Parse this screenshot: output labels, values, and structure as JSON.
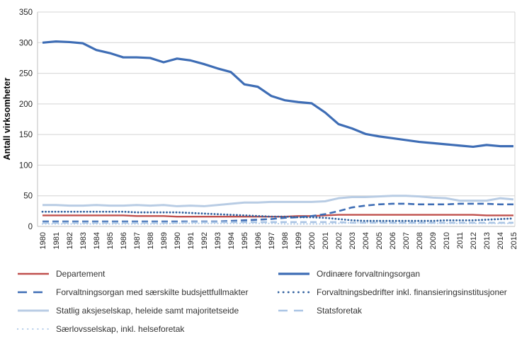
{
  "chart_data": {
    "type": "line",
    "title": "",
    "xlabel": "",
    "ylabel": "Antall virksomheter",
    "ylim": [
      0,
      350
    ],
    "ytick_step": 50,
    "grid": true,
    "legend_position": "bottom",
    "x": [
      1980,
      1981,
      1982,
      1983,
      1984,
      1985,
      1986,
      1987,
      1988,
      1989,
      1990,
      1991,
      1992,
      1993,
      1994,
      1995,
      1996,
      1997,
      1998,
      1999,
      2000,
      2001,
      2002,
      2003,
      2004,
      2005,
      2006,
      2007,
      2008,
      2009,
      2010,
      2011,
      2012,
      2013,
      2014,
      2015
    ],
    "legend_order": [
      "departement",
      "ordinaere",
      "saerskilte",
      "forvaltningsbedrifter",
      "statlig_aksjeselskap",
      "statsforetak",
      "saerlovsselskap"
    ],
    "series": [
      {
        "id": "departement",
        "name": "Departement",
        "color": "#C0504D",
        "style": "solid",
        "width": 2.4,
        "values": [
          18,
          18,
          18,
          18,
          18,
          18,
          18,
          17,
          17,
          17,
          16,
          16,
          16,
          16,
          16,
          16,
          16,
          16,
          16,
          17,
          17,
          18,
          19,
          19,
          19,
          19,
          19,
          19,
          19,
          19,
          19,
          19,
          19,
          18,
          18,
          18
        ]
      },
      {
        "id": "ordinaere",
        "name": "Ordinære forvaltningsorgan",
        "color": "#3E6DB5",
        "style": "solid",
        "width": 3.2,
        "values": [
          300,
          302,
          301,
          299,
          288,
          283,
          276,
          276,
          275,
          268,
          274,
          271,
          265,
          258,
          252,
          232,
          228,
          213,
          206,
          203,
          201,
          186,
          167,
          160,
          151,
          147,
          144,
          141,
          138,
          136,
          134,
          132,
          130,
          133,
          131,
          131
        ]
      },
      {
        "id": "saerskilte",
        "name": "Forvaltningsorgan med særskilte budsjettfullmakter",
        "color": "#3E6DB5",
        "style": "dashed",
        "width": 2.6,
        "values": [
          8,
          8,
          8,
          8,
          8,
          8,
          8,
          8,
          8,
          8,
          8,
          8,
          8,
          8,
          9,
          10,
          11,
          12,
          14,
          15,
          17,
          20,
          25,
          31,
          34,
          36,
          37,
          37,
          36,
          36,
          36,
          37,
          37,
          37,
          36,
          36
        ]
      },
      {
        "id": "forvaltningsbedrifter",
        "name": "Forvaltningsbedrifter inkl. finansieringsinstitusjoner",
        "color": "#31619F",
        "style": "dotted",
        "width": 2.8,
        "values": [
          24,
          24,
          24,
          24,
          24,
          24,
          24,
          23,
          23,
          23,
          23,
          22,
          21,
          20,
          19,
          18,
          17,
          16,
          16,
          15,
          15,
          14,
          12,
          10,
          9,
          9,
          9,
          9,
          9,
          9,
          10,
          10,
          10,
          11,
          12,
          13
        ]
      },
      {
        "id": "statlig_aksjeselskap",
        "name": "Statlig aksjeselskap, heleide samt majoritetseide",
        "color": "#B8CCE4",
        "style": "solid",
        "width": 3,
        "values": [
          35,
          35,
          34,
          34,
          35,
          34,
          34,
          35,
          34,
          35,
          33,
          34,
          33,
          35,
          37,
          39,
          39,
          40,
          40,
          40,
          40,
          41,
          46,
          48,
          48,
          49,
          50,
          50,
          49,
          47,
          46,
          42,
          42,
          42,
          46,
          44
        ]
      },
      {
        "id": "statsforetak",
        "name": "Statsforetak",
        "color": "#A9C4E4",
        "style": "dashed",
        "width": 2.6,
        "values": [
          6,
          6,
          6,
          6,
          6,
          6,
          6,
          6,
          6,
          6,
          6,
          7,
          7,
          7,
          7,
          7,
          7,
          7,
          7,
          7,
          7,
          7,
          7,
          6,
          6,
          6,
          6,
          6,
          6,
          6,
          6,
          6,
          6,
          6,
          6,
          6
        ]
      },
      {
        "id": "saerlovsselskap",
        "name": "Særlovsselskap, inkl. helseforetak",
        "color": "#B3CCE9",
        "style": "dotted",
        "width": 2.2,
        "values": [
          4,
          4,
          4,
          4,
          4,
          4,
          4,
          4,
          4,
          4,
          5,
          5,
          5,
          5,
          5,
          5,
          5,
          5,
          4,
          4,
          4,
          4,
          5,
          6,
          6,
          6,
          5,
          5,
          5,
          5,
          5,
          5,
          5,
          5,
          5,
          5
        ]
      }
    ]
  }
}
